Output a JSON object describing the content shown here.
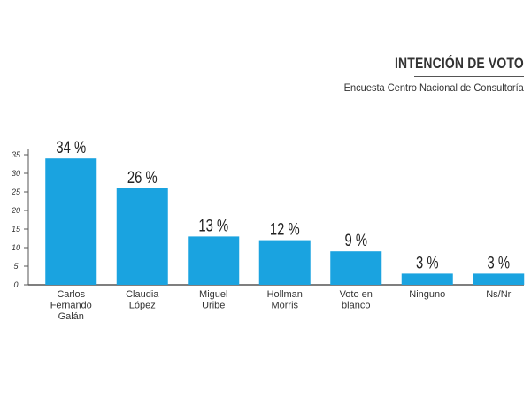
{
  "header": {
    "title": "INTENCIÓN DE VOTO",
    "subtitle": "Encuesta Centro Nacional de Consultoría"
  },
  "colors": {
    "bar": "#1aa3e0",
    "axis": "#555555",
    "text": "#333333"
  },
  "chart_data": {
    "type": "bar",
    "title": "INTENCIÓN DE VOTO",
    "subtitle": "Encuesta Centro Nacional de Consultoría",
    "categories": [
      [
        "Carlos",
        "Fernando",
        "Galán"
      ],
      [
        "Claudia",
        "López"
      ],
      [
        "Miguel",
        "Uribe"
      ],
      [
        "Hollman",
        "Morris"
      ],
      [
        "Voto en",
        "blanco"
      ],
      [
        "Ninguno"
      ],
      [
        "Ns/Nr"
      ]
    ],
    "values": [
      34,
      26,
      13,
      12,
      9,
      3,
      3
    ],
    "value_labels": [
      "34 %",
      "26 %",
      "13 %",
      "12 %",
      "9 %",
      "3 %",
      "3 %"
    ],
    "yticks": [
      "0",
      "5",
      "10",
      "15",
      "20",
      "25",
      "30",
      "35"
    ],
    "ylim": [
      0,
      35
    ],
    "grid": false,
    "legend": "none"
  }
}
